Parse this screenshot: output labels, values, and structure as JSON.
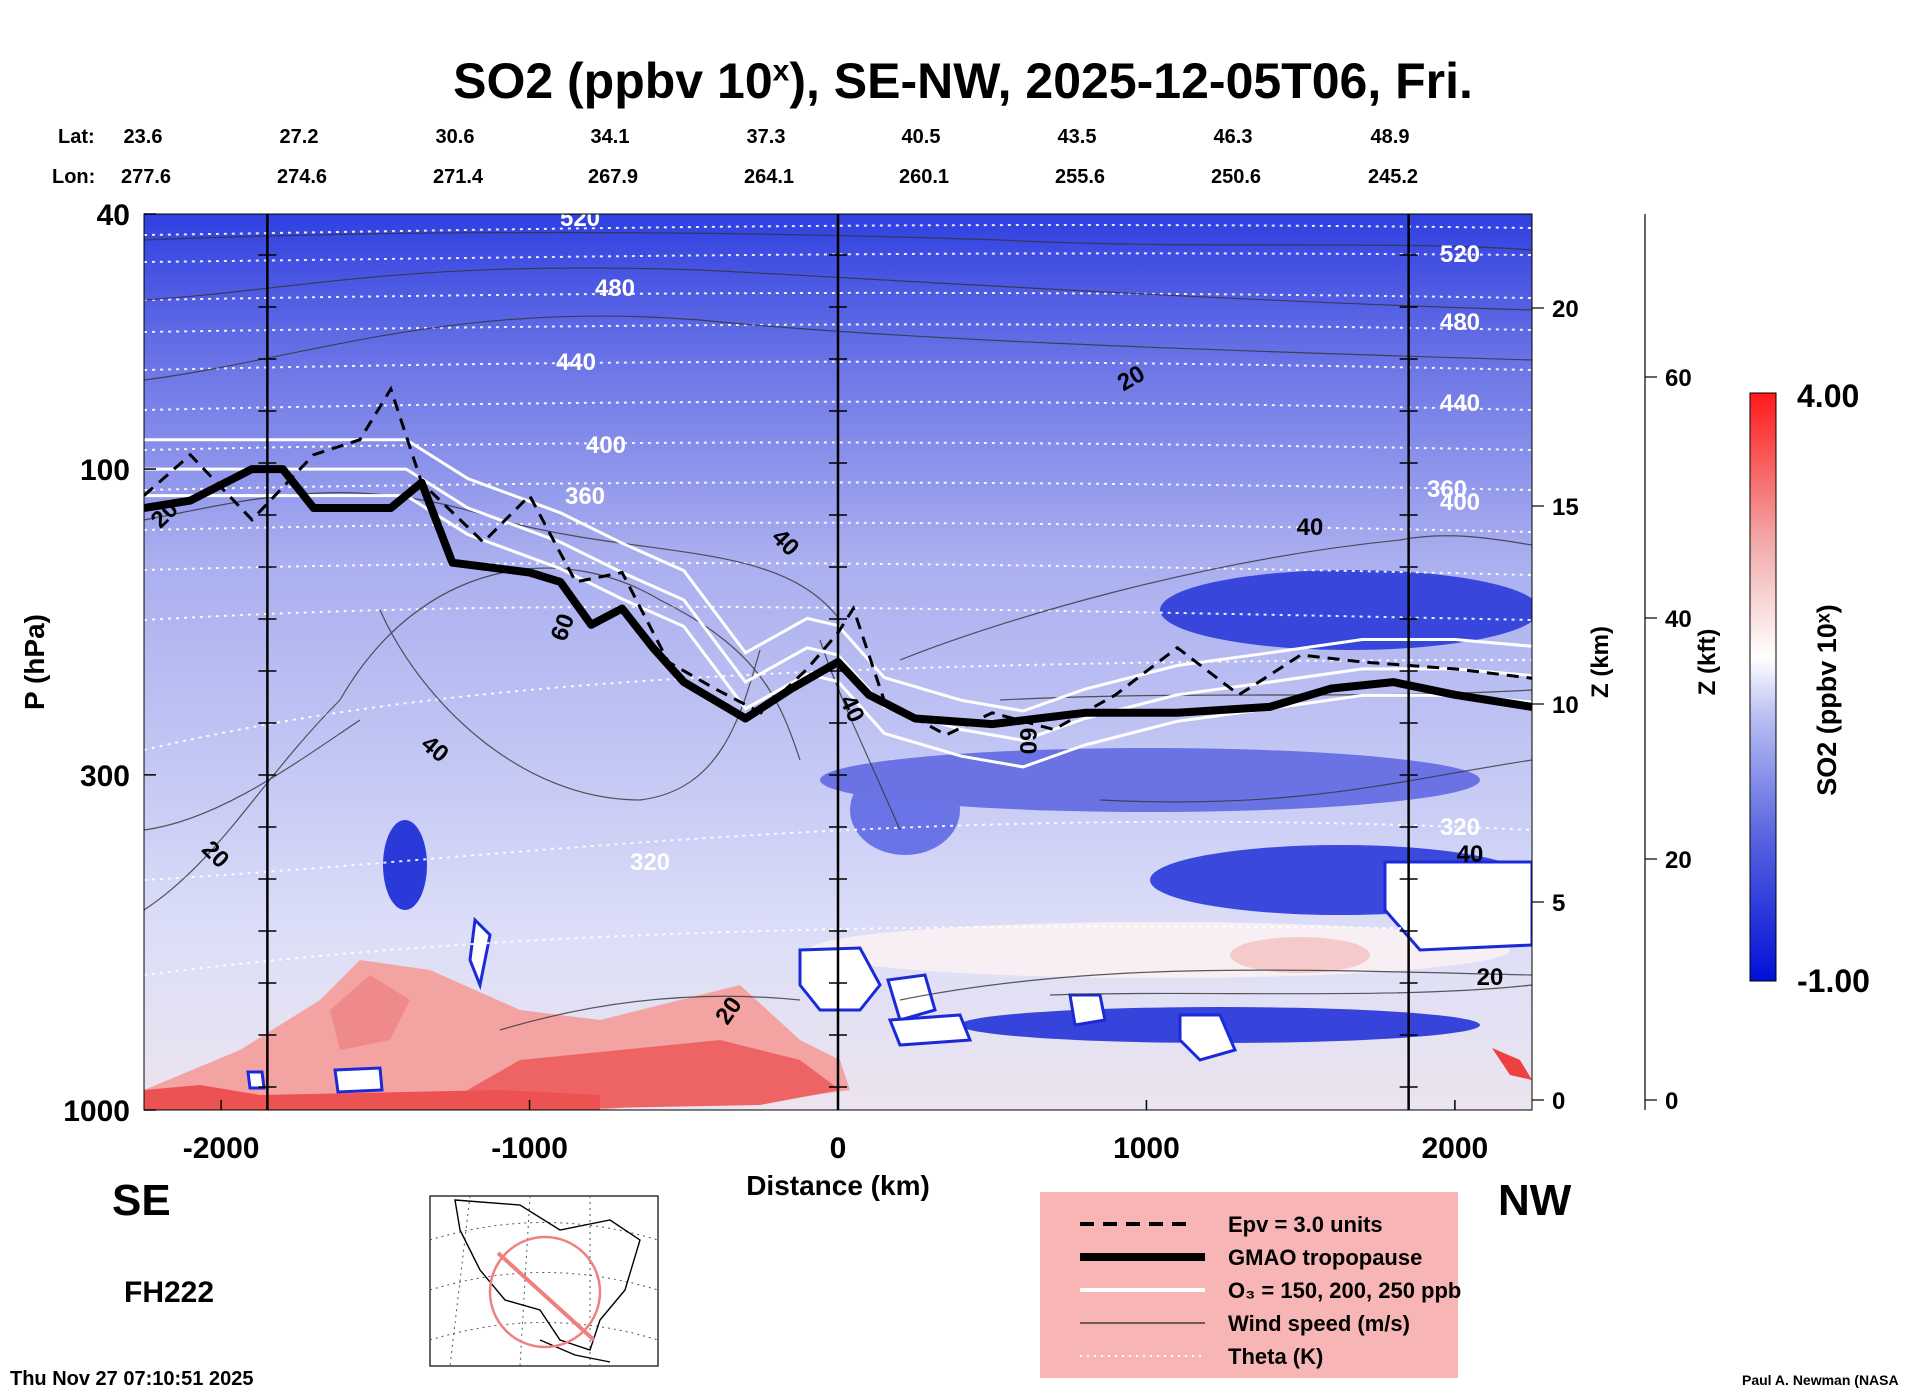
{
  "title": {
    "prefix": "SO2 (ppbv 10",
    "sup": "x",
    "suffix": "), SE-NW, 2025-12-05T06, Fri."
  },
  "coords": {
    "lat_label": "Lat:",
    "lon_label": "Lon:",
    "lat": [
      "23.6",
      "27.2",
      "30.6",
      "34.1",
      "37.3",
      "40.5",
      "43.5",
      "46.3",
      "48.9"
    ],
    "lon": [
      "277.6",
      "274.6",
      "271.4",
      "267.9",
      "264.1",
      "260.1",
      "255.6",
      "250.6",
      "245.2"
    ]
  },
  "direction": {
    "left": "SE",
    "right": "NW"
  },
  "forecast_hour": "FH222",
  "timestamp": "Thu Nov 27 07:10:51 2025",
  "credit": "Paul A. Newman (NASA",
  "legend": [
    {
      "label": "Epv = 3.0 units",
      "style": "dashed"
    },
    {
      "label": "GMAO tropopause",
      "style": "thick"
    },
    {
      "label": "O₃ = 150, 200, 250 ppb",
      "style": "white"
    },
    {
      "label": "Wind speed (m/s)",
      "style": "thin"
    },
    {
      "label": "Theta (K)",
      "style": "dotted"
    }
  ],
  "colors": {
    "legend_bg": "#f7b5b5",
    "high": "#ff1a1a",
    "low": "#0010d8",
    "mid": "#ffffff"
  },
  "chart_data": {
    "type": "heatmap",
    "xlabel": "Distance (km)",
    "ylabel": "P (hPa)",
    "ylabel_right_km": "Z (km)",
    "ylabel_right_kft": "Z (kft)",
    "xlim": [
      -2250,
      2250
    ],
    "ylim": [
      1000,
      40
    ],
    "y_scale": "log",
    "x_ticks": [
      -2000,
      -1000,
      0,
      1000,
      2000
    ],
    "y_ticks": [
      40,
      100,
      300,
      1000
    ],
    "z_km_ticks": [
      0,
      5,
      10,
      15,
      20
    ],
    "z_kft_ticks": [
      0,
      20,
      40,
      60
    ],
    "vertical_markers_km": [
      -1850,
      0,
      1850
    ],
    "colorbar": {
      "label": "SO2 (ppbv 10ˣ)",
      "min": -1.0,
      "max": 4.0,
      "min_label": "-1.00",
      "max_label": "4.00"
    },
    "tropopause_hpa": [
      [
        -2250,
        115
      ],
      [
        -2100,
        112
      ],
      [
        -1900,
        100
      ],
      [
        -1800,
        100
      ],
      [
        -1700,
        115
      ],
      [
        -1450,
        115
      ],
      [
        -1350,
        105
      ],
      [
        -1250,
        140
      ],
      [
        -1000,
        145
      ],
      [
        -900,
        150
      ],
      [
        -800,
        175
      ],
      [
        -700,
        165
      ],
      [
        -600,
        190
      ],
      [
        -500,
        215
      ],
      [
        -300,
        245
      ],
      [
        -150,
        220
      ],
      [
        0,
        200
      ],
      [
        100,
        225
      ],
      [
        250,
        245
      ],
      [
        500,
        250
      ],
      [
        800,
        240
      ],
      [
        1100,
        240
      ],
      [
        1400,
        235
      ],
      [
        1600,
        220
      ],
      [
        1800,
        215
      ],
      [
        2000,
        225
      ],
      [
        2250,
        235
      ]
    ],
    "ozone_hpa": [
      [
        -2250,
        100
      ],
      [
        -1900,
        100
      ],
      [
        -1400,
        100
      ],
      [
        -1200,
        115
      ],
      [
        -900,
        130
      ],
      [
        -700,
        145
      ],
      [
        -500,
        160
      ],
      [
        -300,
        215
      ],
      [
        -100,
        190
      ],
      [
        0,
        195
      ],
      [
        150,
        235
      ],
      [
        400,
        255
      ],
      [
        600,
        265
      ],
      [
        800,
        245
      ],
      [
        1100,
        225
      ],
      [
        1400,
        215
      ],
      [
        1700,
        205
      ],
      [
        2000,
        205
      ],
      [
        2250,
        210
      ]
    ],
    "epv_hpa": [
      [
        -2250,
        110
      ],
      [
        -2100,
        95
      ],
      [
        -1900,
        120
      ],
      [
        -1700,
        95
      ],
      [
        -1550,
        90
      ],
      [
        -1450,
        75
      ],
      [
        -1350,
        105
      ],
      [
        -1150,
        130
      ],
      [
        -1000,
        110
      ],
      [
        -850,
        150
      ],
      [
        -700,
        145
      ],
      [
        -550,
        200
      ],
      [
        -400,
        220
      ],
      [
        -250,
        240
      ],
      [
        -100,
        205
      ],
      [
        0,
        180
      ],
      [
        50,
        165
      ],
      [
        150,
        230
      ],
      [
        350,
        260
      ],
      [
        500,
        240
      ],
      [
        700,
        255
      ],
      [
        900,
        225
      ],
      [
        1100,
        190
      ],
      [
        1300,
        225
      ],
      [
        1500,
        195
      ],
      [
        1700,
        200
      ],
      [
        2000,
        205
      ],
      [
        2250,
        212
      ]
    ],
    "contour_labels": {
      "theta_k": [
        "320",
        "360",
        "400",
        "440",
        "480",
        "520"
      ],
      "wind_ms": [
        "20",
        "40",
        "60"
      ]
    }
  }
}
